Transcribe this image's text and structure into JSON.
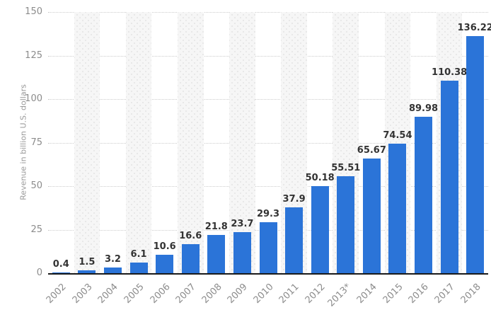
{
  "chart_data": {
    "type": "bar",
    "title": "",
    "categories": [
      "2002",
      "2003",
      "2004",
      "2005",
      "2006",
      "2007",
      "2008",
      "2009",
      "2010",
      "2011",
      "2012",
      "2013*",
      "2014",
      "2015",
      "2016",
      "2017",
      "2018"
    ],
    "values": [
      0.4,
      1.5,
      3.2,
      6.1,
      10.6,
      16.6,
      21.8,
      23.7,
      29.3,
      37.9,
      50.18,
      55.51,
      65.67,
      74.54,
      89.98,
      110.38,
      136.22
    ],
    "value_labels": [
      "0.4",
      "1.5",
      "3.2",
      "6.1",
      "10.6",
      "16.6",
      "21.8",
      "23.7",
      "29.3",
      "37.9",
      "50.18",
      "55.51",
      "65.67",
      "74.54",
      "89.98",
      "110.38",
      "136.22"
    ],
    "xlabel": "",
    "ylabel": "Revenue in billion U.S. dollars",
    "ylim": [
      0,
      150
    ],
    "yticks": [
      0,
      25,
      50,
      75,
      100,
      125,
      150
    ],
    "grid": "horizontal-dotted",
    "legend": "none",
    "background_stripes": "alternating category columns, starting at 2003"
  },
  "colors": {
    "bar": "#2b74d8",
    "value_label": "#333333",
    "axis_text": "#8c8c8c",
    "axis_title": "#999999",
    "gridline": "#cccccc",
    "baseline": "#1a1a1a",
    "stripe_bg": "#f6f6f6",
    "stripe_dot": "#e3e3e3",
    "background": "#ffffff"
  }
}
